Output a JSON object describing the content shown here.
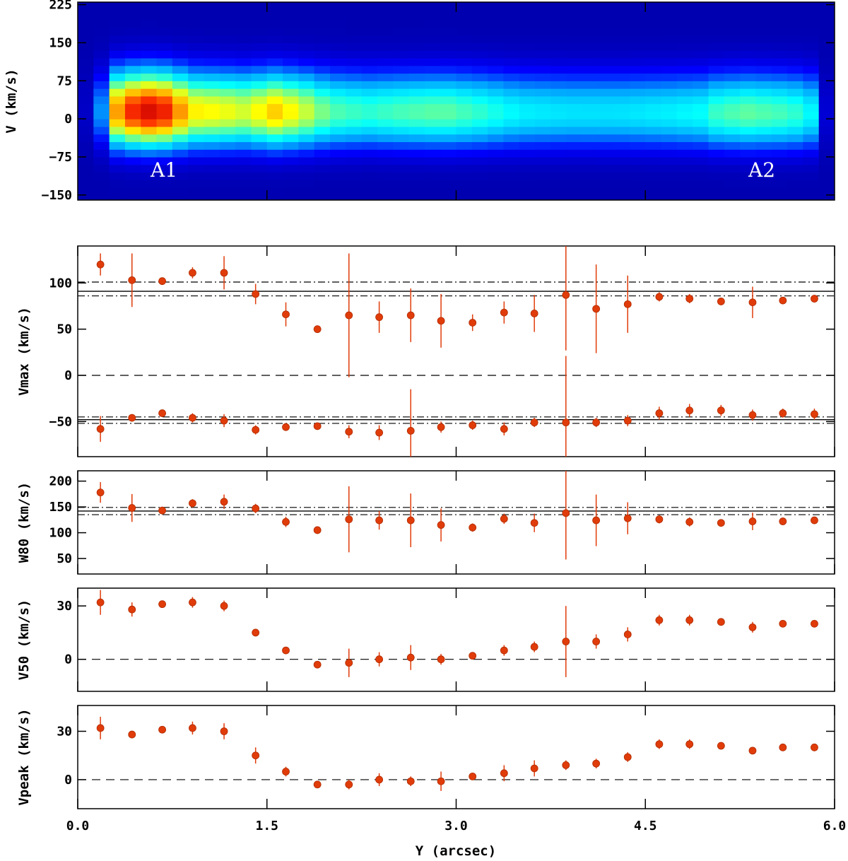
{
  "chart_data": [
    {
      "type": "heatmap",
      "ylabel": "V (km/s)",
      "yticks": [
        225,
        150,
        75,
        0,
        -75,
        -150
      ],
      "ylim": [
        -160,
        230
      ],
      "xlim": [
        0.0,
        6.0
      ],
      "annotations": [
        {
          "text": "A1",
          "x": 0.6,
          "y": -100
        },
        {
          "text": "A2",
          "x": 5.3,
          "y": -100
        }
      ],
      "colormap": [
        "#00008b",
        "#0000ff",
        "#00a0ff",
        "#00ffff",
        "#80ff80",
        "#ffff00",
        "#ffa000",
        "#ff3000",
        "#cc0000"
      ]
    },
    {
      "type": "scatter",
      "ylabel": "Vmax (km/s)",
      "ylim": [
        -88,
        140
      ],
      "yticks": [
        100,
        50,
        0,
        -50
      ],
      "x": [
        0.18,
        0.43,
        0.67,
        0.91,
        1.16,
        1.41,
        1.65,
        1.9,
        2.15,
        2.39,
        2.64,
        2.88,
        3.13,
        3.38,
        3.62,
        3.87,
        4.11,
        4.36,
        4.61,
        4.85,
        5.1,
        5.35,
        5.59,
        5.84
      ],
      "series": [
        {
          "values": [
            120,
            103,
            102,
            111,
            111,
            88,
            66,
            50,
            65,
            63,
            65,
            59,
            57,
            68,
            67,
            87,
            72,
            77,
            85,
            83,
            80,
            79,
            81,
            83
          ],
          "err": [
            12,
            29,
            3,
            6,
            18,
            11,
            13,
            2,
            67,
            17,
            29,
            29,
            9,
            12,
            20,
            60,
            48,
            31,
            5,
            5,
            3,
            17,
            3,
            4
          ]
        },
        {
          "values": [
            -58,
            -46,
            -41,
            -46,
            -49,
            -59,
            -56,
            -55,
            -61,
            -62,
            -60,
            -56,
            -54,
            -58,
            -51,
            -51,
            -51,
            -49,
            -41,
            -38,
            -38,
            -43,
            -41,
            -42
          ],
          "err": [
            14,
            4,
            3,
            5,
            7,
            5,
            4,
            3,
            7,
            8,
            45,
            6,
            5,
            7,
            5,
            72,
            5,
            6,
            7,
            7,
            6,
            6,
            5,
            6
          ]
        }
      ],
      "hlines_solid": [
        91,
        -48
      ],
      "hlines_dashdot": [
        101,
        86,
        -45,
        -52
      ],
      "hlines_dashed": [
        0
      ],
      "marker_color": "#e03c0a"
    },
    {
      "type": "scatter",
      "ylabel": "W80 (km/s)",
      "ylim": [
        20,
        220
      ],
      "yticks": [
        200,
        150,
        100,
        50
      ],
      "x": [
        0.18,
        0.43,
        0.67,
        0.91,
        1.16,
        1.41,
        1.65,
        1.9,
        2.15,
        2.39,
        2.64,
        2.88,
        3.13,
        3.38,
        3.62,
        3.87,
        4.11,
        4.36,
        4.61,
        4.85,
        5.1,
        5.35,
        5.59,
        5.84
      ],
      "series": [
        {
          "values": [
            178,
            148,
            143,
            157,
            160,
            147,
            121,
            105,
            126,
            124,
            124,
            115,
            110,
            127,
            119,
            138,
            124,
            128,
            126,
            121,
            119,
            122,
            122,
            124
          ],
          "err": [
            20,
            27,
            5,
            8,
            14,
            9,
            10,
            4,
            64,
            18,
            52,
            32,
            8,
            10,
            18,
            90,
            50,
            31,
            8,
            9,
            6,
            17,
            5,
            6
          ]
        }
      ],
      "hlines_solid": [
        142
      ],
      "hlines_dashdot": [
        149,
        135
      ],
      "marker_color": "#e03c0a"
    },
    {
      "type": "scatter",
      "ylabel": "V50 (km/s)",
      "ylim": [
        -18,
        40
      ],
      "yticks": [
        30,
        0
      ],
      "x": [
        0.18,
        0.43,
        0.67,
        0.91,
        1.16,
        1.41,
        1.65,
        1.9,
        2.15,
        2.39,
        2.64,
        2.88,
        3.13,
        3.38,
        3.62,
        3.87,
        4.11,
        4.36,
        4.61,
        4.85,
        5.1,
        5.35,
        5.59,
        5.84
      ],
      "series": [
        {
          "values": [
            32,
            28,
            31,
            32,
            30,
            15,
            5,
            -3,
            -2,
            0,
            1,
            0,
            2,
            5,
            7,
            10,
            10,
            14,
            22,
            22,
            21,
            18,
            20,
            20
          ],
          "err": [
            7,
            4,
            1,
            3,
            3,
            2,
            2,
            1,
            8,
            4,
            7,
            3,
            2,
            3,
            3,
            20,
            4,
            4,
            3,
            3,
            2,
            3,
            1,
            2
          ]
        }
      ],
      "hlines_dashed": [
        0
      ],
      "marker_color": "#e03c0a"
    },
    {
      "type": "scatter",
      "ylabel": "Vpeak (km/s)",
      "xlabel": "Y (arcsec)",
      "ylim": [
        -18,
        46
      ],
      "yticks": [
        30,
        0
      ],
      "xticks": [
        "0.0",
        "1.5",
        "3.0",
        "4.5",
        "6.0"
      ],
      "x": [
        0.18,
        0.43,
        0.67,
        0.91,
        1.16,
        1.41,
        1.65,
        1.9,
        2.15,
        2.39,
        2.64,
        2.88,
        3.13,
        3.38,
        3.62,
        3.87,
        4.11,
        4.36,
        4.61,
        4.85,
        5.1,
        5.35,
        5.59,
        5.84
      ],
      "series": [
        {
          "values": [
            32,
            28,
            31,
            32,
            30,
            15,
            5,
            -3,
            -3,
            0,
            -1,
            -1,
            2,
            4,
            7,
            9,
            10,
            14,
            22,
            22,
            21,
            18,
            20,
            20
          ],
          "err": [
            7,
            2,
            1,
            4,
            5,
            5,
            3,
            1,
            3,
            4,
            3,
            6,
            2,
            5,
            5,
            3,
            3,
            3,
            3,
            3,
            2,
            2,
            1,
            2
          ]
        }
      ],
      "hlines_dashed": [
        0
      ],
      "marker_color": "#e03c0a"
    }
  ]
}
